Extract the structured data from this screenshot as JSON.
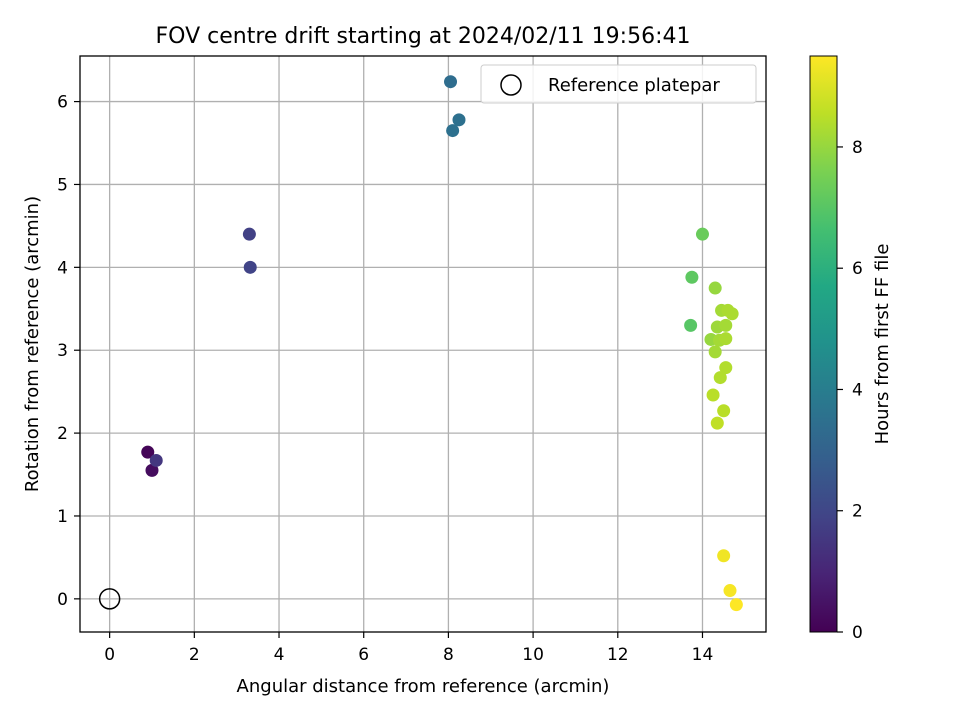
{
  "chart_data": {
    "type": "scatter",
    "title": "FOV centre drift starting at 2024/02/11 19:56:41",
    "xlabel": "Angular distance from reference (arcmin)",
    "ylabel": "Rotation from reference (arcmin)",
    "xlim": [
      -0.7,
      15.5
    ],
    "ylim": [
      -0.4,
      6.55
    ],
    "xticks": [
      0,
      2,
      4,
      6,
      8,
      10,
      12,
      14
    ],
    "yticks": [
      0,
      1,
      2,
      3,
      4,
      5,
      6
    ],
    "grid": true,
    "legend": {
      "position": "top-right",
      "entries": [
        {
          "label": "Reference platepar",
          "marker": "open-circle"
        }
      ]
    },
    "reference_point": {
      "x": 0,
      "y": 0
    },
    "colorbar": {
      "label": "Hours from first FF file",
      "range": [
        0,
        9.5
      ],
      "ticks": [
        0,
        2,
        4,
        6,
        8
      ],
      "colormap": "viridis"
    },
    "points": [
      {
        "x": 0.9,
        "y": 1.77,
        "c": 0.1
      },
      {
        "x": 1.0,
        "y": 1.55,
        "c": 0.3
      },
      {
        "x": 1.1,
        "y": 1.67,
        "c": 1.5
      },
      {
        "x": 3.3,
        "y": 4.4,
        "c": 1.8
      },
      {
        "x": 3.32,
        "y": 4.0,
        "c": 1.9
      },
      {
        "x": 8.05,
        "y": 6.24,
        "c": 3.4
      },
      {
        "x": 8.25,
        "y": 5.78,
        "c": 3.5
      },
      {
        "x": 8.1,
        "y": 5.65,
        "c": 3.5
      },
      {
        "x": 14.0,
        "y": 4.4,
        "c": 7.3
      },
      {
        "x": 13.75,
        "y": 3.88,
        "c": 7.1
      },
      {
        "x": 13.72,
        "y": 3.3,
        "c": 7.0
      },
      {
        "x": 14.3,
        "y": 3.75,
        "c": 8.0
      },
      {
        "x": 14.45,
        "y": 3.48,
        "c": 8.2
      },
      {
        "x": 14.6,
        "y": 3.48,
        "c": 8.3
      },
      {
        "x": 14.7,
        "y": 3.44,
        "c": 8.3
      },
      {
        "x": 14.35,
        "y": 3.28,
        "c": 8.1
      },
      {
        "x": 14.55,
        "y": 3.3,
        "c": 8.2
      },
      {
        "x": 14.2,
        "y": 3.13,
        "c": 8.0
      },
      {
        "x": 14.4,
        "y": 3.12,
        "c": 8.2
      },
      {
        "x": 14.55,
        "y": 3.14,
        "c": 8.3
      },
      {
        "x": 14.3,
        "y": 2.98,
        "c": 8.2
      },
      {
        "x": 14.55,
        "y": 2.79,
        "c": 8.4
      },
      {
        "x": 14.42,
        "y": 2.67,
        "c": 8.4
      },
      {
        "x": 14.25,
        "y": 2.46,
        "c": 8.5
      },
      {
        "x": 14.5,
        "y": 2.27,
        "c": 8.5
      },
      {
        "x": 14.35,
        "y": 2.12,
        "c": 8.6
      },
      {
        "x": 14.5,
        "y": 0.52,
        "c": 9.3
      },
      {
        "x": 14.65,
        "y": 0.1,
        "c": 9.4
      },
      {
        "x": 14.8,
        "y": -0.07,
        "c": 9.5
      }
    ]
  }
}
